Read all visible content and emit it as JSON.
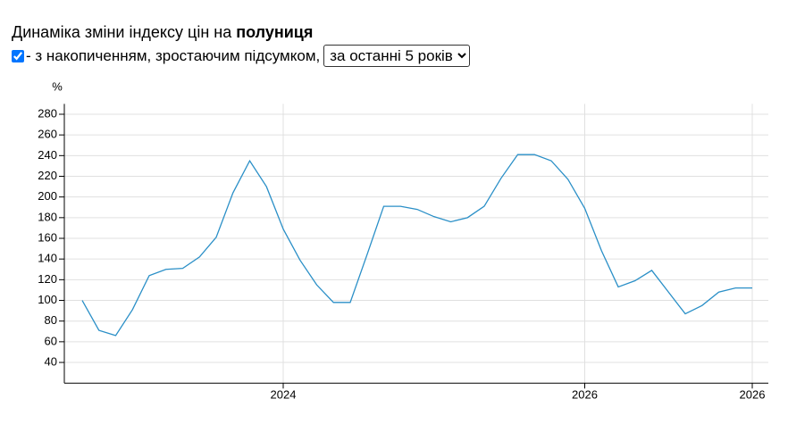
{
  "header": {
    "title": "Динаміка зміни індексу цін на",
    "product": "полуниця"
  },
  "controls": {
    "checkbox_label": "- з накопиченням, зростаючим підсумком,",
    "period": "за останні 5 років"
  },
  "chart_data": {
    "type": "line",
    "y_label": "%",
    "categories": [
      null,
      null,
      null,
      null,
      null,
      null,
      null,
      null,
      null,
      null,
      null,
      null,
      "2024",
      null,
      null,
      null,
      null,
      null,
      null,
      null,
      null,
      null,
      null,
      null,
      null,
      null,
      null,
      null,
      null,
      null,
      "2026",
      null,
      null,
      null,
      null,
      null,
      null,
      null,
      null,
      null,
      "2026"
    ],
    "values": [
      100,
      71,
      66,
      91,
      124,
      130,
      131,
      142,
      161,
      204,
      235,
      210,
      169,
      139,
      115,
      98,
      98,
      144,
      191,
      191,
      188,
      181,
      176,
      180,
      191,
      218,
      241,
      241,
      235,
      217,
      189,
      148,
      113,
      119,
      129,
      108,
      87,
      95,
      108,
      112,
      112
    ],
    "color": "#2a8fc7",
    "ylim": [
      20,
      290
    ],
    "yticks": [
      40,
      60,
      80,
      100,
      120,
      140,
      160,
      180,
      200,
      220,
      240,
      260,
      280
    ],
    "grid": true
  }
}
